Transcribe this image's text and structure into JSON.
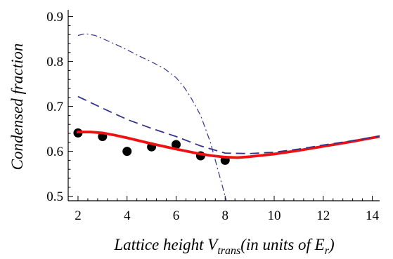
{
  "chart_data": {
    "type": "line",
    "title": "",
    "xlabel": {
      "main": "Lattice height V",
      "subscript": "trans",
      "rest": "(in units of E",
      "rest_subscript": "r",
      "close": ")"
    },
    "ylabel": "Condensed fraction",
    "xlim": [
      1.6,
      14.3
    ],
    "ylim": [
      0.49,
      0.915
    ],
    "xticks": [
      2,
      4,
      6,
      8,
      10,
      12,
      14
    ],
    "yticks": [
      0.5,
      0.6,
      0.7,
      0.8,
      0.9
    ],
    "grid": false,
    "legend": "none",
    "series": [
      {
        "style": "points",
        "color": "#000000",
        "points": [
          [
            2,
            0.641
          ],
          [
            3,
            0.633
          ],
          [
            4,
            0.6
          ],
          [
            5,
            0.61
          ],
          [
            6,
            0.615
          ],
          [
            7,
            0.59
          ],
          [
            8,
            0.58
          ]
        ]
      },
      {
        "style": "solid",
        "color": "#ee1111",
        "points": [
          [
            2,
            0.643
          ],
          [
            2.5,
            0.643
          ],
          [
            3,
            0.641
          ],
          [
            3.5,
            0.636
          ],
          [
            4,
            0.63
          ],
          [
            5,
            0.617
          ],
          [
            6,
            0.605
          ],
          [
            7,
            0.594
          ],
          [
            7.5,
            0.59
          ],
          [
            8,
            0.587
          ],
          [
            8.5,
            0.586
          ],
          [
            9,
            0.588
          ],
          [
            10,
            0.594
          ],
          [
            11,
            0.602
          ],
          [
            12,
            0.611
          ],
          [
            13,
            0.62
          ],
          [
            14.3,
            0.633
          ]
        ]
      },
      {
        "style": "dashed",
        "color": "#33338f",
        "points": [
          [
            2,
            0.722
          ],
          [
            3,
            0.696
          ],
          [
            4,
            0.671
          ],
          [
            5,
            0.651
          ],
          [
            6,
            0.633
          ],
          [
            7,
            0.612
          ],
          [
            8,
            0.596
          ],
          [
            9,
            0.595
          ],
          [
            10,
            0.598
          ],
          [
            11,
            0.605
          ],
          [
            12,
            0.614
          ],
          [
            13,
            0.622
          ],
          [
            14.3,
            0.634
          ]
        ]
      },
      {
        "style": "dashdot",
        "color": "#33338f",
        "points": [
          [
            2,
            0.858
          ],
          [
            2.3,
            0.862
          ],
          [
            2.7,
            0.858
          ],
          [
            3,
            0.851
          ],
          [
            3.5,
            0.839
          ],
          [
            4,
            0.826
          ],
          [
            4.5,
            0.812
          ],
          [
            5,
            0.799
          ],
          [
            5.5,
            0.785
          ],
          [
            6,
            0.764
          ],
          [
            6.3,
            0.745
          ],
          [
            6.6,
            0.72
          ],
          [
            7,
            0.68
          ],
          [
            7.4,
            0.62
          ],
          [
            7.7,
            0.56
          ],
          [
            7.95,
            0.51
          ],
          [
            8.05,
            0.49
          ]
        ]
      }
    ]
  }
}
